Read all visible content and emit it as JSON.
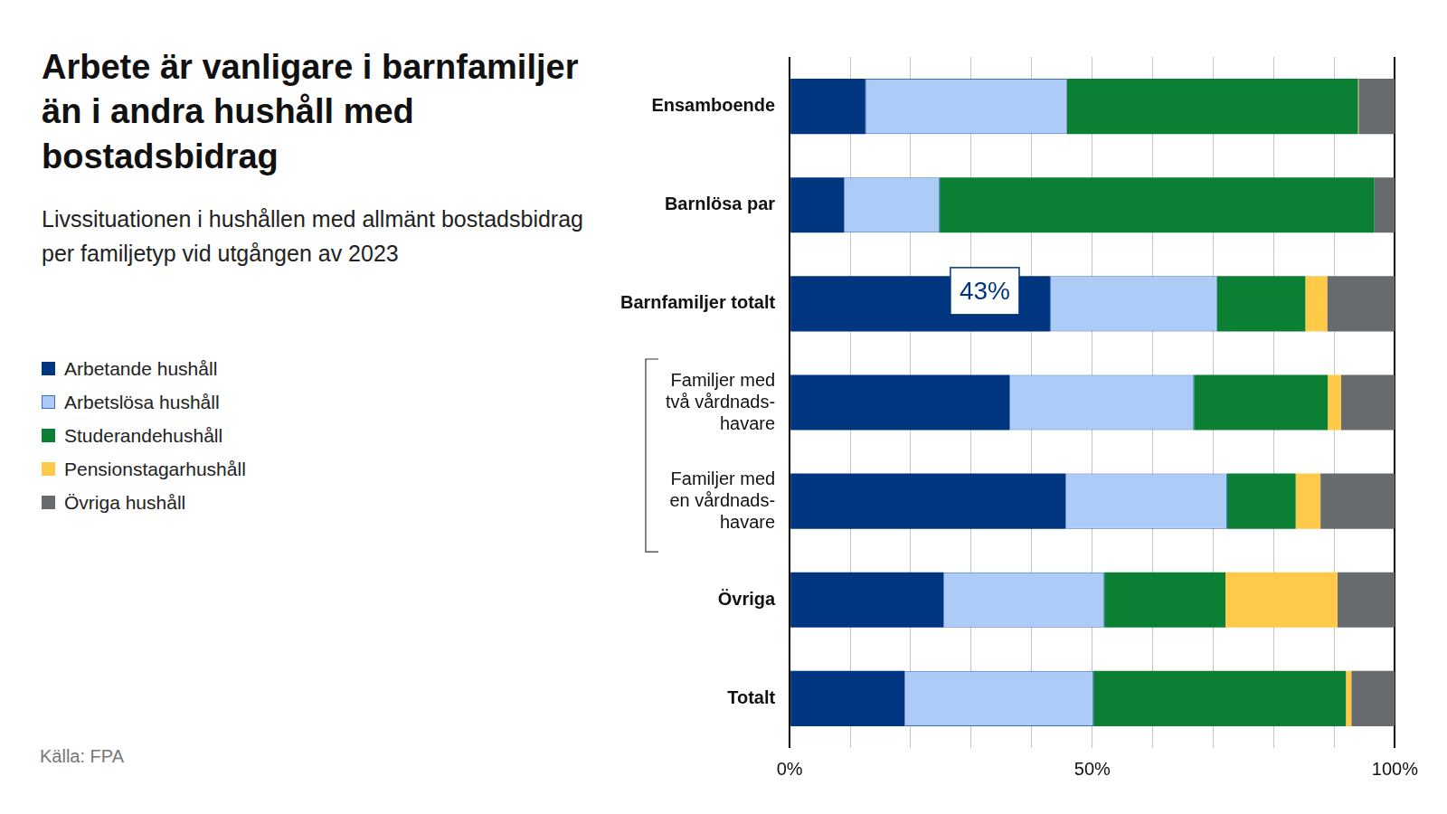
{
  "chart_data": {
    "type": "bar",
    "orientation": "horizontal",
    "stacked": true,
    "title": "Arbete är vanligare i barnfamiljer än i andra hushåll med bostadsbidrag",
    "subtitle": "Livssituationen i hushållen med allmänt bostadsbidrag per familjetyp vid utgången av 2023",
    "source": "Källa: FPA",
    "categories": [
      "Ensamboende",
      "Barnlösa par",
      "Barnfamiljer totalt",
      [
        "Familjer med",
        "två vårdnads-",
        "havare"
      ],
      [
        "Familjer med",
        "en vårdnads-",
        "havare"
      ],
      "Övriga",
      "Totalt"
    ],
    "series": [
      {
        "name": "Arbetande hushåll",
        "color": "#003580",
        "values": [
          12.5,
          9.0,
          43,
          36.3,
          45.6,
          25.4,
          19.0
        ]
      },
      {
        "name": "Arbetslösa hushåll",
        "color": "#adcbf7",
        "values": [
          33.3,
          15.8,
          27.6,
          30.5,
          26.7,
          26.6,
          31.2
        ]
      },
      {
        "name": "Studerandehushåll",
        "color": "#0b8035",
        "values": [
          48.1,
          71.8,
          14.6,
          22.1,
          11.3,
          20.0,
          41.7
        ]
      },
      {
        "name": "Pensionstagarhushåll",
        "color": "#ffc94a",
        "values": [
          0.1,
          0.0,
          3.6,
          2.2,
          4.1,
          18.5,
          0.9
        ]
      },
      {
        "name": "Övriga hushåll",
        "color": "#676b6e",
        "values": [
          6.0,
          3.4,
          11.2,
          8.9,
          12.3,
          9.5,
          7.2
        ]
      }
    ],
    "xlim": [
      0,
      100
    ],
    "xticks": [
      {
        "value": 0,
        "label": "0%"
      },
      {
        "value": 10,
        "label": null
      },
      {
        "value": 20,
        "label": null
      },
      {
        "value": 30,
        "label": null
      },
      {
        "value": 40,
        "label": null
      },
      {
        "value": 50,
        "label": "50%"
      },
      {
        "value": 60,
        "label": null
      },
      {
        "value": 70,
        "label": null
      },
      {
        "value": 80,
        "label": null
      },
      {
        "value": 90,
        "label": null
      },
      {
        "value": 100,
        "label": "100%"
      }
    ],
    "grid": true,
    "legend": "left",
    "annotations": [
      {
        "category": "Barnfamiljer totalt",
        "series": "Arbetande hushåll",
        "label": "43%"
      }
    ]
  }
}
